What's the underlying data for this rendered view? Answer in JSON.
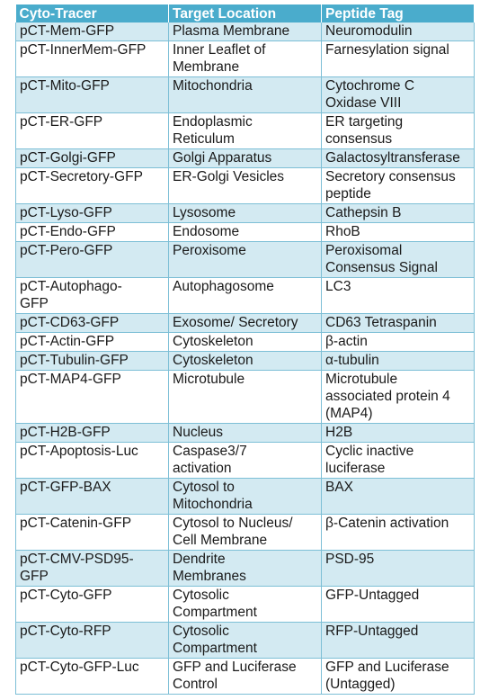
{
  "table": {
    "headers": [
      "Cyto-Tracer",
      "Target Location",
      "Peptide Tag"
    ],
    "rows": [
      [
        "pCT-Mem-GFP",
        "Plasma Membrane",
        "Neuromodulin"
      ],
      [
        "pCT-InnerMem-GFP",
        "Inner Leaflet of\nMembrane",
        "Farnesylation signal"
      ],
      [
        "pCT-Mito-GFP",
        "Mitochondria",
        "Cytochrome C\nOxidase VIII"
      ],
      [
        "pCT-ER-GFP",
        "Endoplasmic\nReticulum",
        "ER targeting\nconsensus"
      ],
      [
        "pCT-Golgi-GFP",
        "Golgi Apparatus",
        "Galactosyltransferase"
      ],
      [
        "pCT-Secretory-GFP",
        "ER-Golgi Vesicles",
        "Secretory consensus\npeptide"
      ],
      [
        "pCT-Lyso-GFP",
        "Lysosome",
        "Cathepsin B"
      ],
      [
        "pCT-Endo-GFP",
        "Endosome",
        "RhoB"
      ],
      [
        "pCT-Pero-GFP",
        "Peroxisome",
        "Peroxisomal\nConsensus Signal"
      ],
      [
        "pCT-Autophago-\nGFP",
        "Autophagosome",
        "LC3"
      ],
      [
        "pCT-CD63-GFP",
        "Exosome/ Secretory",
        "CD63 Tetraspanin"
      ],
      [
        "pCT-Actin-GFP",
        "Cytoskeleton",
        "β-actin"
      ],
      [
        "pCT-Tubulin-GFP",
        "Cytoskeleton",
        "α-tubulin"
      ],
      [
        "pCT-MAP4-GFP",
        "Microtubule",
        "Microtubule\nassociated protein 4\n(MAP4)"
      ],
      [
        "pCT-H2B-GFP",
        "Nucleus",
        "H2B"
      ],
      [
        "pCT-Apoptosis-Luc",
        "Caspase3/7\nactivation",
        "Cyclic inactive\nluciferase"
      ],
      [
        "pCT-GFP-BAX",
        "Cytosol to\nMitochondria",
        "BAX"
      ],
      [
        "pCT-Catenin-GFP",
        "Cytosol to Nucleus/\nCell Membrane",
        "β-Catenin activation"
      ],
      [
        "pCT-CMV-PSD95-\nGFP",
        "Dendrite\nMembranes",
        "PSD-95"
      ],
      [
        "pCT-Cyto-GFP",
        "Cytosolic\nCompartment",
        "GFP-Untagged"
      ],
      [
        "pCT-Cyto-RFP",
        "Cytosolic\nCompartment",
        "RFP-Untagged"
      ],
      [
        "pCT-Cyto-GFP-Luc",
        "GFP and Luciferase\nControl",
        "GFP and Luciferase\n(Untagged)"
      ]
    ]
  },
  "colors": {
    "header_bg": "#4aaccc",
    "stripe_bg": "#d3eaf2",
    "border": "#7dbfd6"
  }
}
